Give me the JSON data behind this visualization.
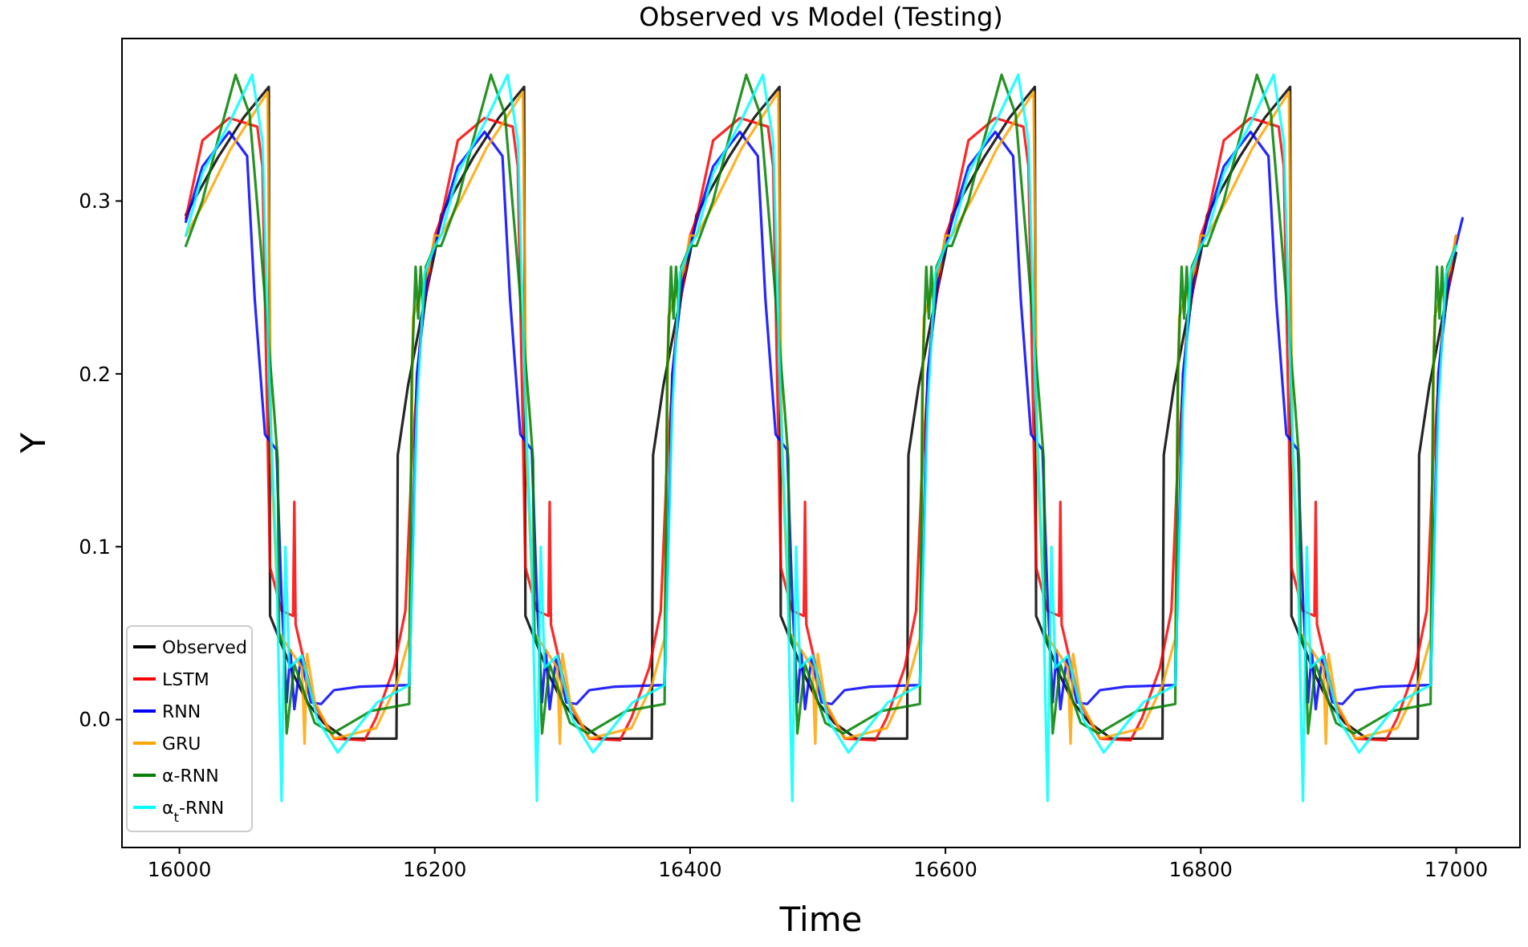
{
  "chart_data": {
    "type": "line",
    "title": "Observed vs Model (Testing)",
    "xlabel": "Time",
    "ylabel": "Y",
    "xlim": [
      15955,
      17050
    ],
    "ylim": [
      -0.074,
      0.394
    ],
    "xticks": [
      16000,
      16200,
      16400,
      16600,
      16800,
      17000
    ],
    "yticks": [
      {
        "value": 0,
        "label": "0.0"
      },
      {
        "value": 0.1,
        "label": "0.1"
      },
      {
        "value": 0.2,
        "label": "0.2"
      },
      {
        "value": 0.3,
        "label": "0.3"
      }
    ],
    "grid": false,
    "legend": "bottom left",
    "marker": "none",
    "line_style": "solid",
    "series": [
      {
        "name": "Observed",
        "color": "#000000",
        "x": [
          16005,
          16030,
          16050,
          16070,
          16071,
          16090,
          16100,
          16113,
          16130,
          16170,
          16171,
          16179,
          16190,
          16200,
          16205,
          16230,
          16250,
          16270,
          16271,
          16290,
          16300,
          16313,
          16330,
          16370,
          16371,
          16379,
          16390,
          16400,
          16405,
          16430,
          16450,
          16470,
          16471,
          16490,
          16500,
          16513,
          16530,
          16570,
          16571,
          16579,
          16590,
          16600,
          16605,
          16630,
          16650,
          16670,
          16671,
          16690,
          16700,
          16713,
          16730,
          16770,
          16771,
          16779,
          16790,
          16800,
          16805,
          16830,
          16850,
          16870,
          16871,
          16890,
          16900,
          16913,
          16930,
          16970,
          16971,
          16979,
          16990,
          17000
        ],
        "values": [
          0.292,
          0.325,
          0.348,
          0.366,
          0.06,
          0.025,
          0.01,
          -0.002,
          -0.011,
          -0.011,
          0.153,
          0.193,
          0.235,
          0.27,
          0.292,
          0.325,
          0.348,
          0.366,
          0.06,
          0.025,
          0.01,
          -0.002,
          -0.011,
          -0.011,
          0.153,
          0.193,
          0.235,
          0.27,
          0.292,
          0.325,
          0.348,
          0.366,
          0.06,
          0.025,
          0.01,
          -0.002,
          -0.011,
          -0.011,
          0.153,
          0.193,
          0.235,
          0.27,
          0.292,
          0.325,
          0.348,
          0.366,
          0.06,
          0.025,
          0.01,
          -0.002,
          -0.011,
          -0.011,
          0.153,
          0.193,
          0.235,
          0.27,
          0.292,
          0.325,
          0.348,
          0.366,
          0.06,
          0.025,
          0.01,
          -0.002,
          -0.011,
          -0.011,
          0.153,
          0.193,
          0.235,
          0.27
        ]
      },
      {
        "name": "LSTM",
        "color": "#ff0000",
        "x": [
          16005,
          16018,
          16039,
          16061,
          16065,
          16071,
          16080,
          16089,
          16090,
          16091,
          16105,
          16121,
          16145,
          16154,
          16168,
          16177,
          16182,
          16189,
          16200,
          16205,
          16218,
          16239,
          16261,
          16265,
          16271,
          16280,
          16289,
          16290,
          16291,
          16305,
          16321,
          16345,
          16354,
          16368,
          16377,
          16382,
          16389,
          16400,
          16405,
          16418,
          16439,
          16461,
          16465,
          16471,
          16480,
          16489,
          16490,
          16491,
          16505,
          16521,
          16545,
          16554,
          16568,
          16577,
          16582,
          16589,
          16600,
          16605,
          16618,
          16639,
          16661,
          16665,
          16671,
          16680,
          16689,
          16690,
          16691,
          16705,
          16721,
          16745,
          16754,
          16768,
          16777,
          16782,
          16789,
          16800,
          16805,
          16818,
          16839,
          16861,
          16865,
          16871,
          16880,
          16889,
          16890,
          16891,
          16905,
          16921,
          16945,
          16954,
          16968,
          16977,
          16982,
          16989,
          17000
        ],
        "values": [
          0.29,
          0.335,
          0.348,
          0.343,
          0.32,
          0.088,
          0.063,
          0.06,
          0.126,
          0.055,
          0.01,
          -0.011,
          -0.012,
          0.001,
          0.03,
          0.063,
          0.15,
          0.224,
          0.28,
          0.29,
          0.335,
          0.348,
          0.343,
          0.32,
          0.088,
          0.063,
          0.06,
          0.126,
          0.055,
          0.01,
          -0.011,
          -0.012,
          0.001,
          0.03,
          0.063,
          0.15,
          0.224,
          0.28,
          0.29,
          0.335,
          0.348,
          0.343,
          0.32,
          0.088,
          0.063,
          0.06,
          0.126,
          0.055,
          0.01,
          -0.011,
          -0.012,
          0.001,
          0.03,
          0.063,
          0.15,
          0.224,
          0.28,
          0.29,
          0.335,
          0.348,
          0.343,
          0.32,
          0.088,
          0.063,
          0.06,
          0.126,
          0.055,
          0.01,
          -0.011,
          -0.012,
          0.001,
          0.03,
          0.063,
          0.15,
          0.224,
          0.28,
          0.29,
          0.335,
          0.348,
          0.343,
          0.32,
          0.088,
          0.063,
          0.06,
          0.126,
          0.055,
          0.01,
          -0.011,
          -0.012,
          0.001,
          0.03,
          0.063,
          0.15,
          0.224,
          0.28
        ]
      },
      {
        "name": "RNN",
        "color": "#0000ff",
        "x": [
          16005,
          16018,
          16039,
          16053,
          16059,
          16067,
          16076,
          16080,
          16084,
          16087,
          16090,
          16095,
          16103,
          16111,
          16121,
          16141,
          16180,
          16186,
          16195,
          16205,
          16218,
          16239,
          16253,
          16259,
          16267,
          16276,
          16280,
          16284,
          16287,
          16290,
          16295,
          16303,
          16311,
          16321,
          16341,
          16380,
          16386,
          16395,
          16405,
          16418,
          16439,
          16453,
          16459,
          16467,
          16476,
          16480,
          16484,
          16487,
          16490,
          16495,
          16503,
          16511,
          16521,
          16541,
          16580,
          16586,
          16595,
          16605,
          16618,
          16639,
          16653,
          16659,
          16667,
          16676,
          16680,
          16684,
          16687,
          16690,
          16695,
          16703,
          16711,
          16721,
          16741,
          16780,
          16786,
          16795,
          16805,
          16818,
          16839,
          16853,
          16859,
          16867,
          16876,
          16880,
          16884,
          16887,
          16890,
          16895,
          16903,
          16911,
          16921,
          16941,
          16980,
          16986,
          16995,
          17005
        ],
        "values": [
          0.288,
          0.32,
          0.34,
          0.326,
          0.243,
          0.165,
          0.156,
          0.07,
          0.01,
          0.04,
          0.006,
          0.035,
          0.01,
          0.009,
          0.017,
          0.019,
          0.02,
          0.2,
          0.26,
          0.288,
          0.32,
          0.34,
          0.326,
          0.243,
          0.165,
          0.156,
          0.07,
          0.01,
          0.04,
          0.006,
          0.035,
          0.01,
          0.009,
          0.017,
          0.019,
          0.02,
          0.2,
          0.26,
          0.288,
          0.32,
          0.34,
          0.326,
          0.243,
          0.165,
          0.156,
          0.07,
          0.01,
          0.04,
          0.006,
          0.035,
          0.01,
          0.009,
          0.017,
          0.019,
          0.02,
          0.2,
          0.26,
          0.288,
          0.32,
          0.34,
          0.326,
          0.243,
          0.165,
          0.156,
          0.07,
          0.01,
          0.04,
          0.006,
          0.035,
          0.01,
          0.009,
          0.017,
          0.019,
          0.02,
          0.2,
          0.26,
          0.288,
          0.32,
          0.34,
          0.326,
          0.243,
          0.165,
          0.156,
          0.07,
          0.01,
          0.04,
          0.006,
          0.035,
          0.01,
          0.009,
          0.017,
          0.019,
          0.02,
          0.2,
          0.26,
          0.29
        ]
      },
      {
        "name": "GRU",
        "color": "#ffa500",
        "x": [
          16005,
          16020,
          16040,
          16069,
          16072,
          16078,
          16096,
          16098,
          16100,
          16106,
          16121,
          16154,
          16170,
          16180,
          16183,
          16195,
          16200,
          16205,
          16220,
          16240,
          16269,
          16272,
          16278,
          16296,
          16298,
          16300,
          16306,
          16321,
          16354,
          16370,
          16380,
          16383,
          16395,
          16400,
          16405,
          16420,
          16440,
          16469,
          16472,
          16478,
          16496,
          16498,
          16500,
          16506,
          16521,
          16554,
          16570,
          16580,
          16583,
          16595,
          16600,
          16605,
          16620,
          16640,
          16669,
          16672,
          16678,
          16696,
          16698,
          16700,
          16706,
          16721,
          16754,
          16770,
          16780,
          16783,
          16795,
          16800,
          16805,
          16820,
          16840,
          16869,
          16872,
          16878,
          16896,
          16898,
          16900,
          16906,
          16921,
          16954,
          16970,
          16980,
          16983,
          16995,
          17000
        ],
        "values": [
          0.28,
          0.3,
          0.33,
          0.363,
          0.15,
          0.05,
          0.03,
          -0.014,
          0.038,
          0.01,
          -0.011,
          -0.005,
          0.02,
          0.047,
          0.233,
          0.26,
          0.28,
          0.28,
          0.3,
          0.33,
          0.363,
          0.15,
          0.05,
          0.03,
          -0.014,
          0.038,
          0.01,
          -0.011,
          -0.005,
          0.02,
          0.047,
          0.233,
          0.26,
          0.28,
          0.28,
          0.3,
          0.33,
          0.363,
          0.15,
          0.05,
          0.03,
          -0.014,
          0.038,
          0.01,
          -0.011,
          -0.005,
          0.02,
          0.047,
          0.233,
          0.26,
          0.28,
          0.28,
          0.3,
          0.33,
          0.363,
          0.15,
          0.05,
          0.03,
          -0.014,
          0.038,
          0.01,
          -0.011,
          -0.005,
          0.02,
          0.047,
          0.233,
          0.26,
          0.28,
          0.28,
          0.3,
          0.33,
          0.363,
          0.15,
          0.05,
          0.03,
          -0.014,
          0.038,
          0.01,
          -0.011,
          -0.005,
          0.02,
          0.047,
          0.233,
          0.26,
          0.28
        ]
      },
      {
        "name": "α-RNN",
        "color": "#008000",
        "x": [
          16005,
          16018,
          16030,
          16044,
          16055,
          16063,
          16074,
          16077,
          16078,
          16082,
          16084,
          16090,
          16106,
          16120,
          16150,
          16180,
          16182,
          16185,
          16187,
          16189,
          16191,
          16193,
          16200,
          16205,
          16218,
          16230,
          16244,
          16255,
          16263,
          16274,
          16277,
          16278,
          16282,
          16284,
          16290,
          16306,
          16320,
          16350,
          16380,
          16382,
          16385,
          16387,
          16389,
          16391,
          16393,
          16400,
          16405,
          16418,
          16430,
          16444,
          16455,
          16463,
          16474,
          16477,
          16478,
          16482,
          16484,
          16490,
          16506,
          16520,
          16550,
          16580,
          16582,
          16585,
          16587,
          16589,
          16591,
          16593,
          16600,
          16605,
          16618,
          16630,
          16644,
          16655,
          16663,
          16674,
          16677,
          16678,
          16682,
          16684,
          16690,
          16706,
          16720,
          16750,
          16780,
          16782,
          16785,
          16787,
          16789,
          16791,
          16793,
          16800,
          16805,
          16818,
          16830,
          16844,
          16855,
          16863,
          16874,
          16877,
          16878,
          16882,
          16884,
          16890,
          16906,
          16920,
          16950,
          16980,
          16982,
          16985,
          16987,
          16989,
          16991,
          16993,
          17000
        ],
        "values": [
          0.274,
          0.3,
          0.335,
          0.373,
          0.35,
          0.28,
          0.18,
          0.15,
          0.05,
          0.04,
          -0.008,
          0.032,
          -0.002,
          -0.008,
          0.005,
          0.009,
          0.2,
          0.262,
          0.232,
          0.262,
          0.235,
          0.262,
          0.274,
          0.274,
          0.3,
          0.335,
          0.373,
          0.35,
          0.28,
          0.18,
          0.15,
          0.05,
          0.04,
          -0.008,
          0.032,
          -0.002,
          -0.008,
          0.005,
          0.009,
          0.2,
          0.262,
          0.232,
          0.262,
          0.235,
          0.262,
          0.274,
          0.274,
          0.3,
          0.335,
          0.373,
          0.35,
          0.28,
          0.18,
          0.15,
          0.05,
          0.04,
          -0.008,
          0.032,
          -0.002,
          -0.008,
          0.005,
          0.009,
          0.2,
          0.262,
          0.232,
          0.262,
          0.235,
          0.262,
          0.274,
          0.274,
          0.3,
          0.335,
          0.373,
          0.35,
          0.28,
          0.18,
          0.15,
          0.05,
          0.04,
          -0.008,
          0.032,
          -0.002,
          -0.008,
          0.005,
          0.009,
          0.2,
          0.262,
          0.232,
          0.262,
          0.235,
          0.262,
          0.274,
          0.274,
          0.3,
          0.335,
          0.373,
          0.35,
          0.28,
          0.18,
          0.15,
          0.05,
          0.04,
          -0.008,
          0.032,
          -0.002,
          -0.008,
          0.005,
          0.009,
          0.2,
          0.262,
          0.232,
          0.262,
          0.235,
          0.262,
          0.274
        ]
      },
      {
        "name": "α$_{t}$-RNN",
        "color": "#00ffff",
        "x": [
          16005,
          16018,
          16039,
          16057,
          16065,
          16071,
          16076,
          16080,
          16083,
          16086,
          16096,
          16108,
          16124,
          16155,
          16180,
          16186,
          16192,
          16200,
          16205,
          16218,
          16239,
          16257,
          16265,
          16271,
          16276,
          16280,
          16283,
          16286,
          16296,
          16308,
          16324,
          16355,
          16380,
          16386,
          16392,
          16400,
          16405,
          16418,
          16439,
          16457,
          16465,
          16471,
          16476,
          16480,
          16483,
          16486,
          16496,
          16508,
          16524,
          16555,
          16580,
          16586,
          16592,
          16600,
          16605,
          16618,
          16639,
          16657,
          16665,
          16671,
          16676,
          16680,
          16683,
          16686,
          16696,
          16708,
          16724,
          16755,
          16780,
          16786,
          16792,
          16800,
          16805,
          16818,
          16839,
          16857,
          16865,
          16871,
          16876,
          16880,
          16883,
          16886,
          16896,
          16908,
          16924,
          16955,
          16980,
          16986,
          16992,
          17000
        ],
        "values": [
          0.28,
          0.316,
          0.345,
          0.373,
          0.335,
          0.18,
          0.09,
          -0.047,
          0.1,
          0.03,
          0.037,
          0,
          -0.019,
          0.01,
          0.02,
          0.18,
          0.258,
          0.274,
          0.28,
          0.316,
          0.345,
          0.373,
          0.335,
          0.18,
          0.09,
          -0.047,
          0.1,
          0.03,
          0.037,
          0,
          -0.019,
          0.01,
          0.02,
          0.18,
          0.258,
          0.274,
          0.28,
          0.316,
          0.345,
          0.373,
          0.335,
          0.18,
          0.09,
          -0.047,
          0.1,
          0.03,
          0.037,
          0,
          -0.019,
          0.01,
          0.02,
          0.18,
          0.258,
          0.274,
          0.28,
          0.316,
          0.345,
          0.373,
          0.335,
          0.18,
          0.09,
          -0.047,
          0.1,
          0.03,
          0.037,
          0,
          -0.019,
          0.01,
          0.02,
          0.18,
          0.258,
          0.274,
          0.28,
          0.316,
          0.345,
          0.373,
          0.335,
          0.18,
          0.09,
          -0.047,
          0.1,
          0.03,
          0.037,
          0,
          -0.019,
          0.01,
          0.02,
          0.18,
          0.258,
          0.274
        ]
      }
    ]
  }
}
